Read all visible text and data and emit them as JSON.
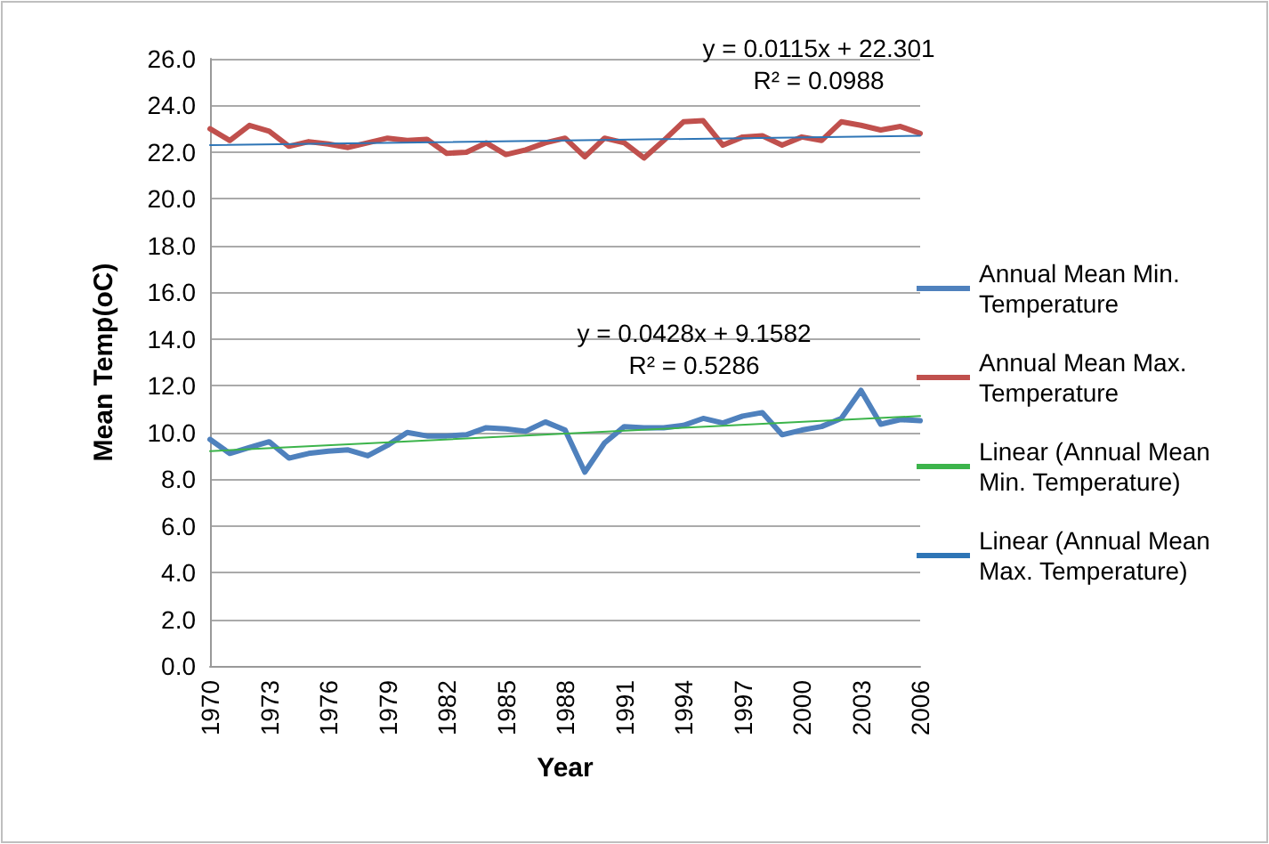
{
  "chart_data": {
    "type": "line",
    "xlabel": "Year",
    "ylabel": "Mean Temp(oC)",
    "categories": [
      "1970",
      null,
      null,
      "1973",
      null,
      null,
      "1976",
      null,
      null,
      "1979",
      null,
      null,
      "1982",
      null,
      null,
      "1985",
      null,
      null,
      "1988",
      null,
      null,
      "1991",
      null,
      null,
      "1994",
      null,
      null,
      "1997",
      null,
      null,
      "2000",
      null,
      null,
      "2003",
      null,
      null,
      "2006"
    ],
    "series": [
      {
        "name": "Annual Mean Min. Temperature",
        "color": "#4f81bd",
        "values": [
          9.7,
          9.1,
          9.35,
          9.6,
          8.9,
          9.1,
          9.2,
          9.25,
          9.0,
          9.45,
          10.0,
          9.85,
          9.85,
          9.9,
          10.2,
          10.15,
          10.05,
          10.45,
          10.1,
          8.3,
          9.55,
          10.25,
          10.2,
          10.2,
          10.3,
          10.6,
          10.4,
          10.7,
          10.85,
          9.9,
          10.1,
          10.25,
          10.6,
          11.8,
          10.35,
          10.55,
          10.5
        ]
      },
      {
        "name": "Annual Mean Max. Temperature",
        "color": "#c0504d",
        "values": [
          23.0,
          22.5,
          23.15,
          22.9,
          22.25,
          22.45,
          22.35,
          22.2,
          22.4,
          22.6,
          22.5,
          22.55,
          21.95,
          22.0,
          22.4,
          21.9,
          22.1,
          22.4,
          22.6,
          21.8,
          22.6,
          22.4,
          21.75,
          22.5,
          23.3,
          23.35,
          22.3,
          22.65,
          22.7,
          22.3,
          22.65,
          22.5,
          23.3,
          23.15,
          22.95,
          23.1,
          22.8
        ]
      },
      {
        "name": "Linear (Annual Mean Min. Temperature)",
        "color": "#3cb44b",
        "values": [
          9.2,
          null,
          null,
          null,
          null,
          null,
          null,
          null,
          null,
          null,
          null,
          null,
          null,
          null,
          null,
          null,
          null,
          null,
          null,
          null,
          null,
          null,
          null,
          null,
          null,
          null,
          null,
          null,
          null,
          null,
          null,
          null,
          null,
          null,
          null,
          null,
          10.7
        ]
      },
      {
        "name": "Linear (Annual Mean Max. Temperature)",
        "color": "#2e75b6",
        "values": [
          22.3,
          null,
          null,
          null,
          null,
          null,
          null,
          null,
          null,
          null,
          null,
          null,
          null,
          null,
          null,
          null,
          null,
          null,
          null,
          null,
          null,
          null,
          null,
          null,
          null,
          null,
          null,
          null,
          null,
          null,
          null,
          null,
          null,
          null,
          null,
          null,
          22.7
        ]
      }
    ],
    "ylim": [
      0,
      26
    ],
    "yticks": [
      {
        "value": 0,
        "label": "0.0"
      },
      {
        "value": 2,
        "label": "2.0"
      },
      {
        "value": 4,
        "label": "4.0"
      },
      {
        "value": 6,
        "label": "6.0"
      },
      {
        "value": 8,
        "label": "8.0"
      },
      {
        "value": 10,
        "label": "10.0"
      },
      {
        "value": 12,
        "label": "12.0"
      },
      {
        "value": 14,
        "label": "14.0"
      },
      {
        "value": 16,
        "label": "16.0"
      },
      {
        "value": 18,
        "label": "18.0"
      },
      {
        "value": 20,
        "label": "20.0"
      },
      {
        "value": 22,
        "label": "22.0"
      },
      {
        "value": 24,
        "label": "24.0"
      },
      {
        "value": 26,
        "label": "26.0"
      }
    ],
    "grid": "y",
    "legend": "right",
    "marker": "none",
    "line_style": "solid",
    "annotations": [
      "y = 0.0115x + 22.301\nR² = 0.0988",
      "y = 0.0428x + 9.1582\nR² = 0.5286"
    ]
  }
}
